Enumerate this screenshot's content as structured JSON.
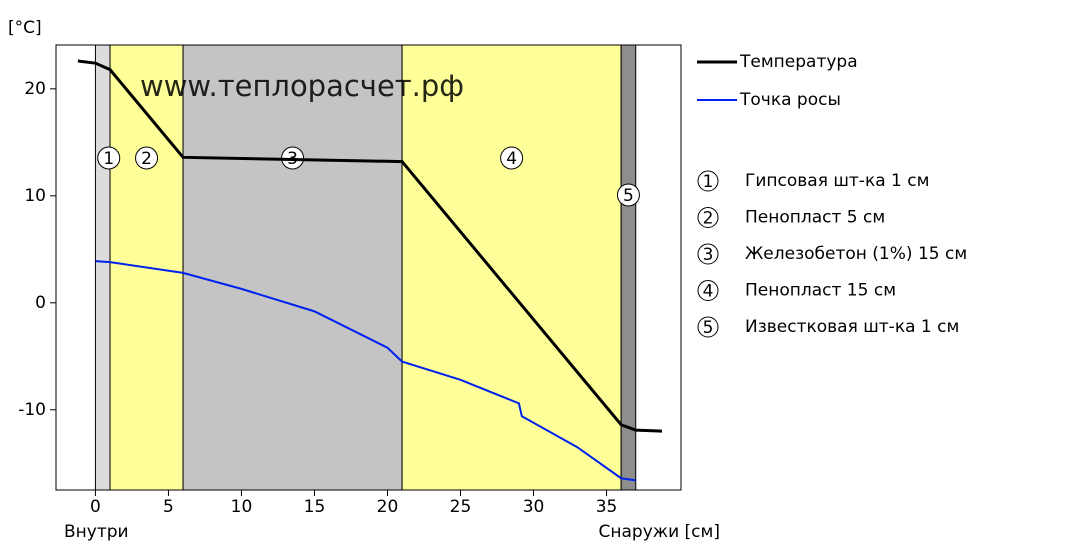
{
  "chart_data": {
    "type": "line",
    "y_label": "[°C]",
    "x_label_left": "Внутри",
    "x_label_right": "Снаружи [см]",
    "watermark": "www.теплорасчет.рф",
    "xlim": [
      -2.7,
      40.1
    ],
    "ylim": [
      -17.5,
      24.1
    ],
    "xticks": [
      0,
      5,
      10,
      15,
      20,
      25,
      30,
      35
    ],
    "yticks": [
      -10,
      0,
      10,
      20
    ],
    "layers": [
      {
        "number": 1,
        "name": "Гипсовая шт-ка 1 см",
        "from": 0,
        "to": 1,
        "color": "#dcdcdc"
      },
      {
        "number": 2,
        "name": "Пенопласт 5 см",
        "from": 1,
        "to": 6,
        "color": "#ffff99"
      },
      {
        "number": 3,
        "name": "Железобетон (1%) 15 см",
        "from": 6,
        "to": 21,
        "color": "#c4c4c4"
      },
      {
        "number": 4,
        "name": "Пенопласт 15 см",
        "from": 21,
        "to": 36,
        "color": "#ffff99"
      },
      {
        "number": 5,
        "name": "Известковая шт-ка 1 см",
        "from": 36,
        "to": 37,
        "color": "#8e8e8e"
      }
    ],
    "series": [
      {
        "name": "Температура",
        "color": "#000000",
        "x": [
          -1.2,
          0,
          1,
          6,
          21,
          36,
          37,
          38.8
        ],
        "values": [
          22.6,
          22.4,
          21.8,
          13.6,
          13.2,
          -11.4,
          -11.9,
          -12
        ]
      },
      {
        "name": "Точка росы",
        "color": "#0022ee",
        "x": [
          0,
          1,
          6,
          10,
          15,
          20,
          21,
          25,
          29,
          29.2,
          33,
          36,
          37
        ],
        "values": [
          3.9,
          3.8,
          2.8,
          1.3,
          -0.8,
          -4.2,
          -5.5,
          -7.2,
          -9.4,
          -10.6,
          -13.5,
          -16.4,
          -16.6
        ]
      }
    ]
  }
}
